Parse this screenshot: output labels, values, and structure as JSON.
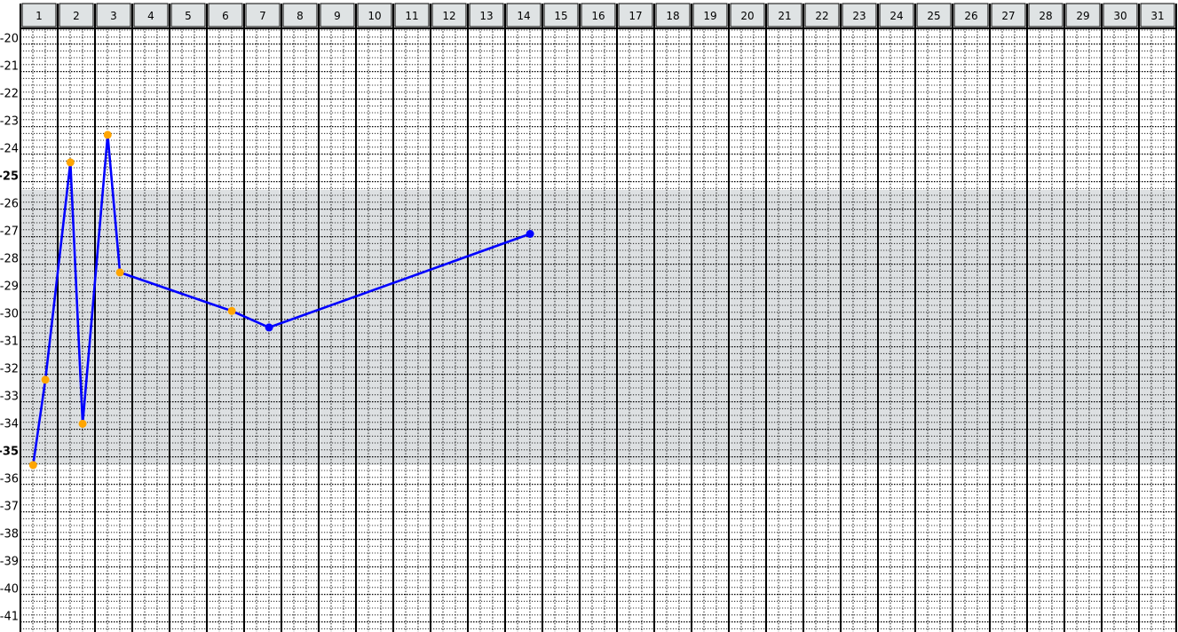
{
  "chart_data": {
    "type": "line",
    "title": "",
    "xlabel": "",
    "ylabel": "",
    "x_ticks": [
      1,
      2,
      3,
      4,
      5,
      6,
      7,
      8,
      9,
      10,
      11,
      12,
      13,
      14,
      15,
      16,
      17,
      18,
      19,
      20,
      21,
      22,
      23,
      24,
      25,
      26,
      27,
      28,
      29,
      30,
      31
    ],
    "y_ticks": [
      -20,
      -21,
      -22,
      -23,
      -24,
      -25,
      -26,
      -27,
      -28,
      -29,
      -30,
      -31,
      -32,
      -33,
      -34,
      -35,
      -36,
      -37,
      -38,
      -39,
      -40,
      -41
    ],
    "y_bold_ticks": [
      -25,
      -35
    ],
    "ylim": [
      -41.4,
      -19.4
    ],
    "xlim": [
      1,
      31
    ],
    "grid": true,
    "band": {
      "y_from": -25.3,
      "y_to": -35.3,
      "color": "#dde0e2"
    },
    "series": [
      {
        "color": "#0000ff",
        "points": [
          {
            "x": 1.0,
            "y": -35.3,
            "marker": "#ffa500"
          },
          {
            "x": 1.33,
            "y": -32.2,
            "marker": "#ffa500"
          },
          {
            "x": 2.0,
            "y": -24.3,
            "marker": "#ffa500"
          },
          {
            "x": 2.33,
            "y": -33.8,
            "marker": "#ffa500"
          },
          {
            "x": 3.0,
            "y": -23.3,
            "marker": "#ffa500"
          },
          {
            "x": 3.33,
            "y": -28.3,
            "marker": "#ffa500"
          },
          {
            "x": 6.33,
            "y": -29.7,
            "marker": "#ffa500"
          },
          {
            "x": 7.33,
            "y": -30.3,
            "marker": "#0000ff"
          },
          {
            "x": 14.33,
            "y": -26.9,
            "marker": "#0000ff"
          }
        ]
      }
    ]
  }
}
